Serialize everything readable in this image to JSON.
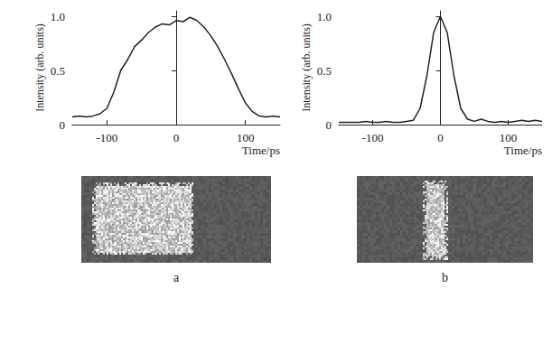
{
  "chart_data": [
    {
      "type": "line",
      "panel_label": "a",
      "x_label": "Time/ps",
      "y_label": "Intensity (arb. units)",
      "x": [
        -150,
        -140,
        -130,
        -120,
        -110,
        -100,
        -90,
        -80,
        -70,
        -60,
        -50,
        -40,
        -30,
        -20,
        -10,
        0,
        10,
        20,
        30,
        40,
        50,
        60,
        70,
        80,
        90,
        100,
        110,
        120,
        130,
        140,
        150
      ],
      "values": [
        0.07,
        0.08,
        0.07,
        0.08,
        0.1,
        0.15,
        0.3,
        0.5,
        0.6,
        0.72,
        0.78,
        0.85,
        0.9,
        0.93,
        0.92,
        0.96,
        0.95,
        0.99,
        0.96,
        0.9,
        0.82,
        0.72,
        0.6,
        0.47,
        0.33,
        0.2,
        0.12,
        0.08,
        0.07,
        0.08,
        0.07
      ],
      "color": "#222222",
      "xlim": [
        -150,
        150
      ],
      "xticks": [
        -100,
        0,
        100
      ],
      "ylim": [
        0,
        1.05
      ],
      "yticks": [
        0,
        0.5,
        {
          "value": 1,
          "label": "1.0"
        }
      ],
      "grid": false
    },
    {
      "type": "line",
      "panel_label": "b",
      "x_label": "Time/ps",
      "y_label": "Intensity (arb. units)",
      "x": [
        -150,
        -140,
        -130,
        -120,
        -110,
        -100,
        -90,
        -80,
        -70,
        -60,
        -50,
        -40,
        -30,
        -20,
        -10,
        0,
        10,
        20,
        30,
        40,
        50,
        60,
        70,
        80,
        90,
        100,
        110,
        120,
        130,
        140,
        150
      ],
      "values": [
        0.02,
        0.02,
        0.02,
        0.02,
        0.03,
        0.02,
        0.02,
        0.03,
        0.02,
        0.02,
        0.03,
        0.04,
        0.15,
        0.45,
        0.85,
        1.0,
        0.85,
        0.45,
        0.15,
        0.05,
        0.03,
        0.05,
        0.03,
        0.02,
        0.03,
        0.02,
        0.03,
        0.04,
        0.03,
        0.04,
        0.03
      ],
      "color": "#222222",
      "xlim": [
        -150,
        150
      ],
      "xticks": [
        -100,
        0,
        100
      ],
      "ylim": [
        0,
        1.05
      ],
      "yticks": [
        0,
        0.5,
        {
          "value": 1,
          "label": "1.0"
        }
      ],
      "grid": false
    }
  ]
}
